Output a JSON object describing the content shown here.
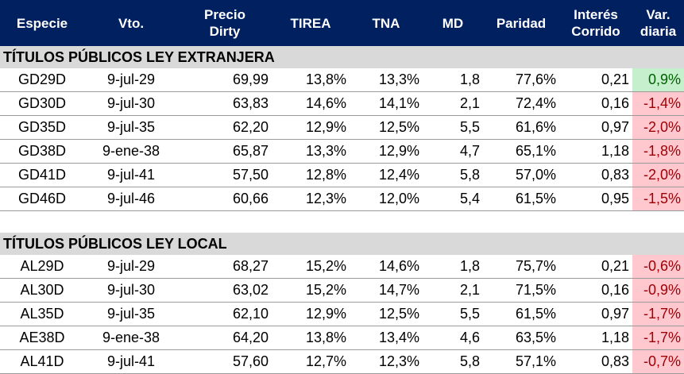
{
  "headers": {
    "especie": "Especie",
    "vto": "Vto.",
    "precio_1": "Precio",
    "precio_2": "Dirty",
    "tirea": "TIREA",
    "tna": "TNA",
    "md": "MD",
    "paridad": "Paridad",
    "interes_1": "Interés",
    "interes_2": "Corrido",
    "var_1": "Var.",
    "var_2": "diaria"
  },
  "colors": {
    "header_bg": "#002060",
    "section_bg": "#d9d9d9",
    "positive_bg": "#c6efce",
    "positive_text": "#006100",
    "negative_bg": "#ffc7ce",
    "negative_text": "#9c0006"
  },
  "sections": [
    {
      "title": "TÍTULOS PÚBLICOS LEY EXTRANJERA",
      "rows": [
        {
          "especie": "GD29D",
          "vto": "9-jul-29",
          "precio": "69,99",
          "tirea": "13,8%",
          "tna": "13,3%",
          "md": "1,8",
          "paridad": "77,6%",
          "interes": "0,21",
          "var": "0,9%"
        },
        {
          "especie": "GD30D",
          "vto": "9-jul-30",
          "precio": "63,83",
          "tirea": "14,6%",
          "tna": "14,1%",
          "md": "2,1",
          "paridad": "72,4%",
          "interes": "0,16",
          "var": "-1,4%"
        },
        {
          "especie": "GD35D",
          "vto": "9-jul-35",
          "precio": "62,20",
          "tirea": "12,9%",
          "tna": "12,5%",
          "md": "5,5",
          "paridad": "61,6%",
          "interes": "0,97",
          "var": "-2,0%"
        },
        {
          "especie": "GD38D",
          "vto": "9-ene-38",
          "precio": "65,87",
          "tirea": "13,3%",
          "tna": "12,9%",
          "md": "4,7",
          "paridad": "65,1%",
          "interes": "1,18",
          "var": "-1,8%"
        },
        {
          "especie": "GD41D",
          "vto": "9-jul-41",
          "precio": "57,50",
          "tirea": "12,8%",
          "tna": "12,4%",
          "md": "5,8",
          "paridad": "57,0%",
          "interes": "0,83",
          "var": "-2,0%"
        },
        {
          "especie": "GD46D",
          "vto": "9-jul-46",
          "precio": "60,66",
          "tirea": "12,3%",
          "tna": "12,0%",
          "md": "5,4",
          "paridad": "61,5%",
          "interes": "0,95",
          "var": "-1,5%"
        }
      ]
    },
    {
      "title": "TÍTULOS PÚBLICOS LEY LOCAL",
      "rows": [
        {
          "especie": "AL29D",
          "vto": "9-jul-29",
          "precio": "68,27",
          "tirea": "15,2%",
          "tna": "14,6%",
          "md": "1,8",
          "paridad": "75,7%",
          "interes": "0,21",
          "var": "-0,6%"
        },
        {
          "especie": "AL30D",
          "vto": "9-jul-30",
          "precio": "63,02",
          "tirea": "15,2%",
          "tna": "14,7%",
          "md": "2,1",
          "paridad": "71,5%",
          "interes": "0,16",
          "var": "-0,9%"
        },
        {
          "especie": "AL35D",
          "vto": "9-jul-35",
          "precio": "62,10",
          "tirea": "12,9%",
          "tna": "12,5%",
          "md": "5,5",
          "paridad": "61,5%",
          "interes": "0,97",
          "var": "-1,7%"
        },
        {
          "especie": "AE38D",
          "vto": "9-ene-38",
          "precio": "64,20",
          "tirea": "13,8%",
          "tna": "13,4%",
          "md": "4,6",
          "paridad": "63,5%",
          "interes": "1,18",
          "var": "-1,7%"
        },
        {
          "especie": "AL41D",
          "vto": "9-jul-41",
          "precio": "57,60",
          "tirea": "12,7%",
          "tna": "12,3%",
          "md": "5,8",
          "paridad": "57,1%",
          "interes": "0,83",
          "var": "-0,7%"
        }
      ]
    }
  ]
}
